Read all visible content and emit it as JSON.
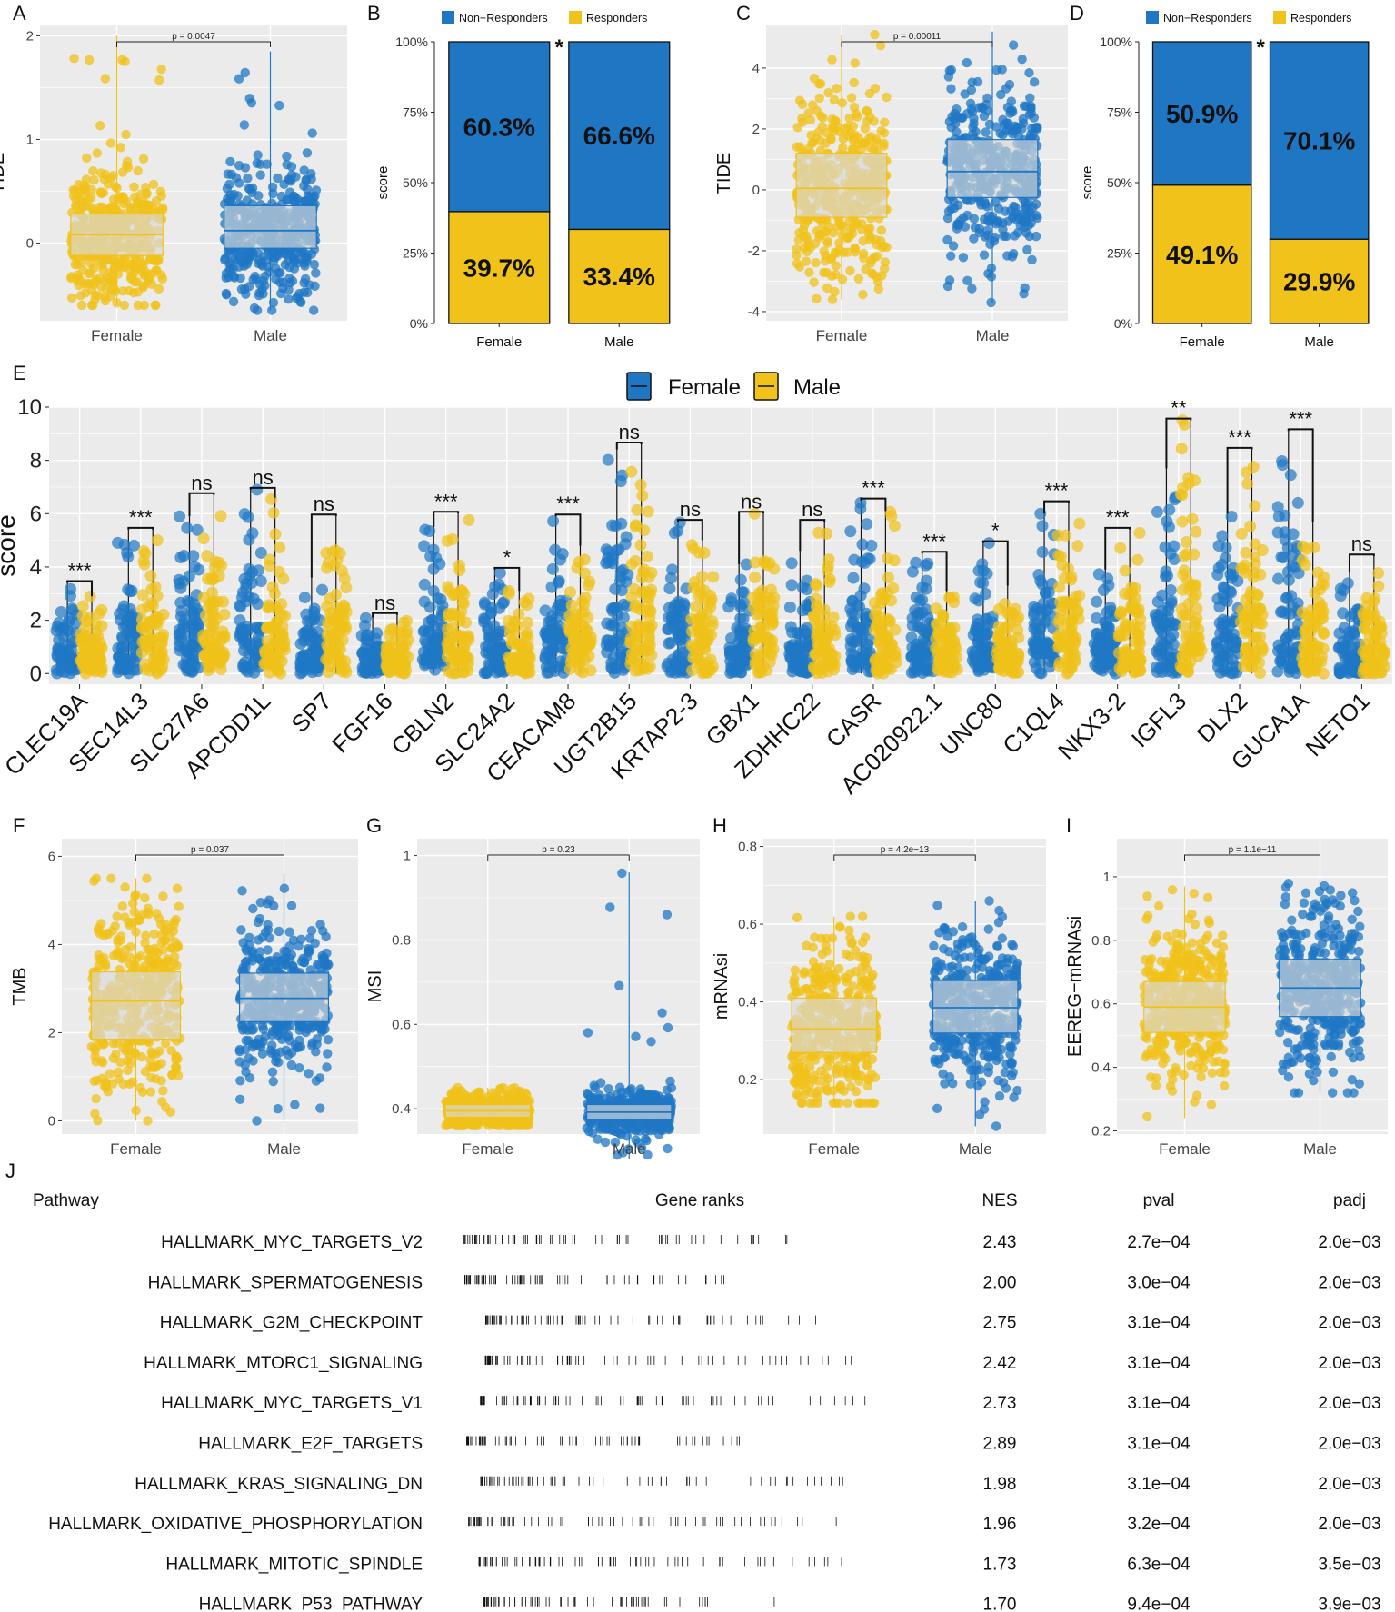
{
  "colors": {
    "female": "#F0C21A",
    "male": "#1F77C4",
    "panel_bg": "#EBEBEB",
    "grid": "#FFFFFF",
    "bar_blue": "#1F77C4",
    "bar_yellow": "#F0C21A"
  },
  "chart_data": [
    {
      "id": "A",
      "type": "scatter",
      "plot": "box_jitter",
      "label": "A",
      "ylabel": "TIDE",
      "categories": [
        "Female",
        "Male"
      ],
      "ylim": [
        -0.75,
        2.1
      ],
      "yticks": [
        0,
        1,
        2
      ],
      "boxes": [
        {
          "q1": -0.12,
          "median": 0.08,
          "q3": 0.28,
          "whisker_lo": -0.6,
          "whisker_hi": 2.0
        },
        {
          "q1": -0.05,
          "median": 0.12,
          "q3": 0.36,
          "whisker_lo": -0.65,
          "whisker_hi": 1.85
        }
      ],
      "pvalue": "p = 0.0047"
    },
    {
      "id": "B",
      "type": "bar",
      "plot": "stacked_percent",
      "label": "B",
      "ylabel": "score",
      "categories": [
        "Female",
        "Male"
      ],
      "legend": [
        "Non−Responders",
        "Responders"
      ],
      "yticks": [
        "0%",
        "25%",
        "50%",
        "75%",
        "100%"
      ],
      "series": [
        {
          "name": "Non−Responders",
          "values": [
            60.3,
            66.6
          ],
          "labels": [
            "60.3%",
            "66.6%"
          ]
        },
        {
          "name": "Responders",
          "values": [
            39.7,
            33.4
          ],
          "labels": [
            "39.7%",
            "33.4%"
          ]
        }
      ],
      "significance": "*"
    },
    {
      "id": "C",
      "type": "scatter",
      "plot": "box_jitter",
      "label": "C",
      "ylabel": "TIDE",
      "categories": [
        "Female",
        "Male"
      ],
      "ylim": [
        -4.3,
        5.4
      ],
      "yticks": [
        -4,
        -2,
        0,
        2,
        4
      ],
      "boxes": [
        {
          "q1": -0.9,
          "median": 0.05,
          "q3": 1.2,
          "whisker_lo": -3.6,
          "whisker_hi": 5.1
        },
        {
          "q1": -0.25,
          "median": 0.6,
          "q3": 1.65,
          "whisker_lo": -3.7,
          "whisker_hi": 5.2
        }
      ],
      "pvalue": "p = 0.00011"
    },
    {
      "id": "D",
      "type": "bar",
      "plot": "stacked_percent",
      "label": "D",
      "ylabel": "score",
      "categories": [
        "Female",
        "Male"
      ],
      "legend": [
        "Non−Responders",
        "Responders"
      ],
      "yticks": [
        "0%",
        "25%",
        "50%",
        "75%",
        "100%"
      ],
      "series": [
        {
          "name": "Non−Responders",
          "values": [
            50.9,
            70.1
          ],
          "labels": [
            "50.9%",
            "70.1%"
          ]
        },
        {
          "name": "Responders",
          "values": [
            49.1,
            29.9
          ],
          "labels": [
            "49.1%",
            "29.9%"
          ]
        }
      ],
      "significance": "*"
    },
    {
      "id": "E",
      "type": "scatter",
      "plot": "grouped_box_jitter",
      "label": "E",
      "ylabel": "score",
      "ylim": [
        -0.4,
        10
      ],
      "yticks": [
        0,
        2,
        4,
        6,
        8,
        10
      ],
      "legend": [
        "Female",
        "Male"
      ],
      "genes": [
        "CLEC19A",
        "SEC14L3",
        "SLC27A6",
        "APCDD1L",
        "SP7",
        "FGF16",
        "CBLN2",
        "SLC24A2",
        "CEACAM8",
        "UGT2B15",
        "KRTAP2-3",
        "GBX1",
        "ZDHHC22",
        "CASR",
        "AC020922.1",
        "UNC80",
        "C1QL4",
        "NKX3-2",
        "IGFL3",
        "DLX2",
        "GUCA1A",
        "NETO1"
      ],
      "max_female": [
        3.4,
        5.4,
        5.9,
        6.9,
        3.6,
        2.1,
        5.5,
        3.9,
        5.9,
        8.4,
        5.7,
        4.1,
        4.6,
        6.5,
        4.5,
        4.9,
        6.0,
        3.9,
        7.7,
        6.0,
        9.1,
        3.8
      ],
      "max_male": [
        2.9,
        5.4,
        6.7,
        6.6,
        5.9,
        2.2,
        6.0,
        3.1,
        4.8,
        8.6,
        5.0,
        6.0,
        5.7,
        6.1,
        3.1,
        3.3,
        6.4,
        5.4,
        9.5,
        8.4,
        5.7,
        4.4
      ],
      "significance": [
        "***",
        "***",
        "ns",
        "ns",
        "ns",
        "ns",
        "***",
        "*",
        "***",
        "ns",
        "ns",
        "ns",
        "ns",
        "***",
        "***",
        "*",
        "***",
        "***",
        "**",
        "***",
        "***",
        "ns"
      ]
    },
    {
      "id": "F",
      "type": "scatter",
      "plot": "box_jitter",
      "label": "F",
      "ylabel": "TMB",
      "categories": [
        "Female",
        "Male"
      ],
      "ylim": [
        -0.3,
        6.4
      ],
      "yticks": [
        0,
        2,
        4,
        6
      ],
      "boxes": [
        {
          "q1": 1.85,
          "median": 2.72,
          "q3": 3.38,
          "whisker_lo": 0.0,
          "whisker_hi": 5.5
        },
        {
          "q1": 2.25,
          "median": 2.78,
          "q3": 3.35,
          "whisker_lo": 0.0,
          "whisker_hi": 5.6
        }
      ],
      "pvalue": "p = 0.037"
    },
    {
      "id": "G",
      "type": "scatter",
      "plot": "box_jitter",
      "label": "G",
      "ylabel": "MSI",
      "categories": [
        "Female",
        "Male"
      ],
      "ylim": [
        0.34,
        1.04
      ],
      "yticks": [
        0.4,
        0.6,
        0.8,
        1.0
      ],
      "boxes": [
        {
          "q1": 0.38,
          "median": 0.395,
          "q3": 0.41,
          "whisker_lo": 0.36,
          "whisker_hi": 0.45
        },
        {
          "q1": 0.375,
          "median": 0.392,
          "q3": 0.41,
          "whisker_lo": 0.28,
          "whisker_hi": 0.96
        }
      ],
      "pvalue": "p = 0.23"
    },
    {
      "id": "H",
      "type": "scatter",
      "plot": "box_jitter",
      "label": "H",
      "ylabel": "mRNAsi",
      "categories": [
        "Female",
        "Male"
      ],
      "ylim": [
        0.06,
        0.82
      ],
      "yticks": [
        0.2,
        0.4,
        0.6,
        0.8
      ],
      "boxes": [
        {
          "q1": 0.27,
          "median": 0.33,
          "q3": 0.41,
          "whisker_lo": 0.14,
          "whisker_hi": 0.62
        },
        {
          "q1": 0.32,
          "median": 0.385,
          "q3": 0.455,
          "whisker_lo": 0.08,
          "whisker_hi": 0.66
        }
      ],
      "pvalue": "p = 4.2e−13"
    },
    {
      "id": "I",
      "type": "scatter",
      "plot": "box_jitter",
      "label": "I",
      "ylabel": "EEREG−mRNAsi",
      "categories": [
        "Female",
        "Male"
      ],
      "ylim": [
        0.19,
        1.12
      ],
      "yticks": [
        0.2,
        0.4,
        0.6,
        0.8,
        1.0
      ],
      "boxes": [
        {
          "q1": 0.51,
          "median": 0.59,
          "q3": 0.67,
          "whisker_lo": 0.24,
          "whisker_hi": 0.97
        },
        {
          "q1": 0.56,
          "median": 0.65,
          "q3": 0.74,
          "whisker_lo": 0.32,
          "whisker_hi": 0.99
        }
      ],
      "pvalue": "p = 1.1e−11"
    },
    {
      "id": "J",
      "type": "table",
      "plot": "gsea_table",
      "label": "J",
      "columns": [
        "Pathway",
        "Gene ranks",
        "NES",
        "pval",
        "padj"
      ],
      "rows": [
        {
          "pathway": "HALLMARK_MYC_TARGETS_V2",
          "nes": "2.43",
          "pval": "2.7e−04",
          "padj": "2.0e−03"
        },
        {
          "pathway": "HALLMARK_SPERMATOGENESIS",
          "nes": "2.00",
          "pval": "3.0e−04",
          "padj": "2.0e−03"
        },
        {
          "pathway": "HALLMARK_G2M_CHECKPOINT",
          "nes": "2.75",
          "pval": "3.1e−04",
          "padj": "2.0e−03"
        },
        {
          "pathway": "HALLMARK_MTORC1_SIGNALING",
          "nes": "2.42",
          "pval": "3.1e−04",
          "padj": "2.0e−03"
        },
        {
          "pathway": "HALLMARK_MYC_TARGETS_V1",
          "nes": "2.73",
          "pval": "3.1e−04",
          "padj": "2.0e−03"
        },
        {
          "pathway": "HALLMARK_E2F_TARGETS",
          "nes": "2.89",
          "pval": "3.1e−04",
          "padj": "2.0e−03"
        },
        {
          "pathway": "HALLMARK_KRAS_SIGNALING_DN",
          "nes": "1.98",
          "pval": "3.1e−04",
          "padj": "2.0e−03"
        },
        {
          "pathway": "HALLMARK_OXIDATIVE_PHOSPHORYLATION",
          "nes": "1.96",
          "pval": "3.2e−04",
          "padj": "2.0e−03"
        },
        {
          "pathway": "HALLMARK_MITOTIC_SPINDLE",
          "nes": "1.73",
          "pval": "6.3e−04",
          "padj": "3.5e−03"
        },
        {
          "pathway": "HALLMARK_P53_PATHWAY",
          "nes": "1.70",
          "pval": "9.4e−04",
          "padj": "3.9e−03"
        }
      ]
    }
  ]
}
